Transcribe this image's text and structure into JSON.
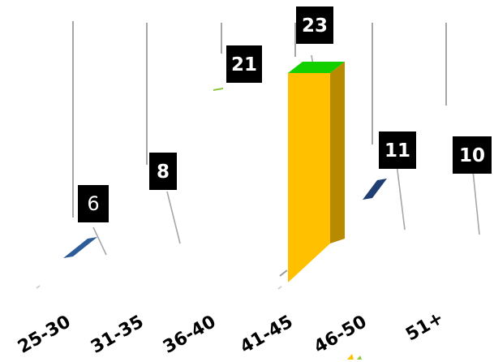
{
  "chart_data": {
    "type": "bar",
    "categories": [
      "25-30",
      "31-35",
      "36-40",
      "41-45",
      "46-50",
      "51+"
    ],
    "values": [
      6,
      8,
      21,
      23,
      11,
      10
    ],
    "title": "",
    "xlabel": "",
    "ylabel": "",
    "ylim": [
      0,
      25
    ],
    "grid": false,
    "legend": "none",
    "three_d": true,
    "colors": {
      "bar_25_30": "#2e5c99",
      "bar_31_35": "#2e5c99",
      "bar_36_40": "#8cc63f",
      "bar_41_45": "#ffc000",
      "bar_46_50": "#1f3f73",
      "bar_51_plus": "#2e5c99",
      "label_box": "#000000",
      "label_text": "#ffffff",
      "leader_line": "#a6a6a6"
    }
  }
}
